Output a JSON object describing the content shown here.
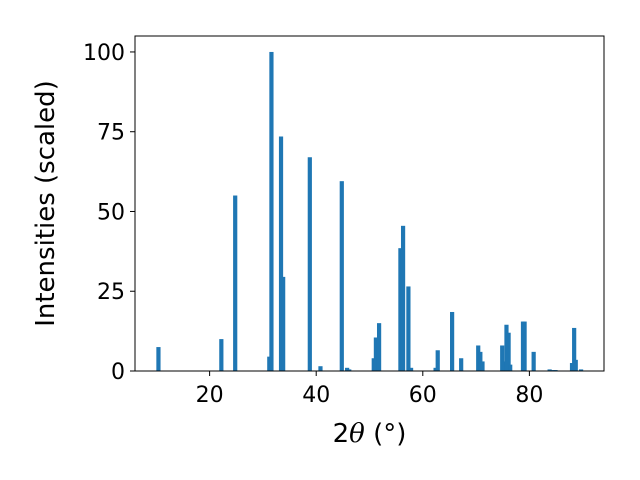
{
  "chart_data": {
    "type": "bar",
    "xlabel": "2θ (°)",
    "xlabel_main": "2",
    "xlabel_italic": "θ",
    "xlabel_unit": " (°)",
    "ylabel": "Intensities (scaled)",
    "xlim": [
      6.0,
      94.0
    ],
    "ylim": [
      0,
      105
    ],
    "xticks": [
      20,
      40,
      60,
      80
    ],
    "yticks": [
      0,
      25,
      50,
      75,
      100
    ],
    "grid": false,
    "legend": "none",
    "bar_color": "#1f77b4",
    "x": [
      10.4,
      22.2,
      24.8,
      31.2,
      31.6,
      33.4,
      33.8,
      38.8,
      40.8,
      44.8,
      45.8,
      46.2,
      50.8,
      51.2,
      51.8,
      55.8,
      56.3,
      57.3,
      57.8,
      62.4,
      62.8,
      65.5,
      67.2,
      70.4,
      70.8,
      71.2,
      74.9,
      75.3,
      75.7,
      76.1,
      76.4,
      78.8,
      79.1,
      80.8,
      83.8,
      84.5,
      84.9,
      88.0,
      88.4,
      88.7,
      89.7
    ],
    "y": [
      7.5,
      10,
      55,
      4.5,
      100,
      73.5,
      29.5,
      67,
      1.5,
      59.5,
      1,
      0.5,
      4,
      10.5,
      15,
      38.5,
      45.5,
      26.5,
      1,
      1,
      6.5,
      18.5,
      4,
      8,
      6,
      3,
      8,
      3,
      14.5,
      12,
      2,
      15.5,
      15.5,
      6,
      0.5,
      0.3,
      0.3,
      2.5,
      13.5,
      3.5,
      0.5
    ]
  }
}
